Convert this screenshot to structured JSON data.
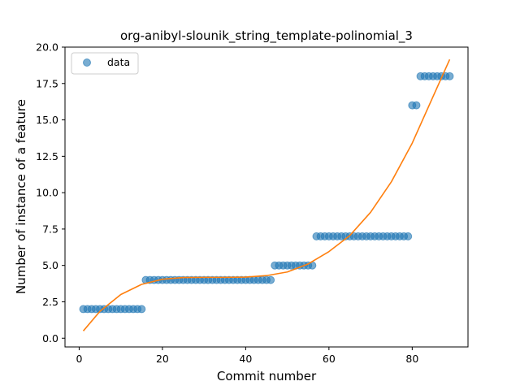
{
  "chart_data": {
    "type": "scatter",
    "title": "org-anibyl-slounik_string_template-polinomial_3",
    "xlabel": "Commit number",
    "ylabel": "Number of instance of a feature",
    "xlim": [
      -3.4,
      93.4
    ],
    "ylim": [
      -0.6,
      20.0
    ],
    "xticks": [
      0,
      20,
      40,
      60,
      80
    ],
    "xtick_labels": [
      "0",
      "20",
      "40",
      "60",
      "80"
    ],
    "yticks": [
      0.0,
      2.5,
      5.0,
      7.5,
      10.0,
      12.5,
      15.0,
      17.5,
      20.0
    ],
    "ytick_labels": [
      "0.0",
      "2.5",
      "5.0",
      "7.5",
      "10.0",
      "12.5",
      "15.0",
      "17.5",
      "20.0"
    ],
    "grid": false,
    "legend_position": "upper-left",
    "legend_entries": [
      "data"
    ],
    "series": [
      {
        "name": "data",
        "kind": "scatter",
        "color": "#1f77b4",
        "x": [
          1,
          2,
          3,
          4,
          5,
          6,
          7,
          8,
          9,
          10,
          11,
          12,
          13,
          14,
          15,
          16,
          17,
          18,
          19,
          20,
          21,
          22,
          23,
          24,
          25,
          26,
          27,
          28,
          29,
          30,
          31,
          32,
          33,
          34,
          35,
          36,
          37,
          38,
          39,
          40,
          41,
          42,
          43,
          44,
          45,
          46,
          47,
          48,
          49,
          50,
          51,
          52,
          53,
          54,
          55,
          56,
          57,
          58,
          59,
          60,
          61,
          62,
          63,
          64,
          65,
          66,
          67,
          68,
          69,
          70,
          71,
          72,
          73,
          74,
          75,
          76,
          77,
          78,
          79,
          80,
          81,
          82,
          83,
          84,
          85,
          86,
          87,
          88,
          89
        ],
        "y": [
          2,
          2,
          2,
          2,
          2,
          2,
          2,
          2,
          2,
          2,
          2,
          2,
          2,
          2,
          2,
          4,
          4,
          4,
          4,
          4,
          4,
          4,
          4,
          4,
          4,
          4,
          4,
          4,
          4,
          4,
          4,
          4,
          4,
          4,
          4,
          4,
          4,
          4,
          4,
          4,
          4,
          4,
          4,
          4,
          4,
          4,
          5,
          5,
          5,
          5,
          5,
          5,
          5,
          5,
          5,
          5,
          7,
          7,
          7,
          7,
          7,
          7,
          7,
          7,
          7,
          7,
          7,
          7,
          7,
          7,
          7,
          7,
          7,
          7,
          7,
          7,
          7,
          7,
          7,
          16,
          16,
          18,
          18,
          18,
          18,
          18,
          18,
          18,
          18
        ]
      },
      {
        "kind": "line",
        "color": "#ff7f0e",
        "x": [
          1,
          5,
          10,
          15,
          20,
          25,
          30,
          35,
          40,
          45,
          50,
          55,
          60,
          65,
          70,
          75,
          80,
          85,
          89
        ],
        "y": [
          0.5,
          1.85,
          3.0,
          3.7,
          4.05,
          4.17,
          4.18,
          4.18,
          4.2,
          4.3,
          4.55,
          5.1,
          5.95,
          7.05,
          8.65,
          10.75,
          13.4,
          16.6,
          19.15
        ]
      }
    ]
  }
}
